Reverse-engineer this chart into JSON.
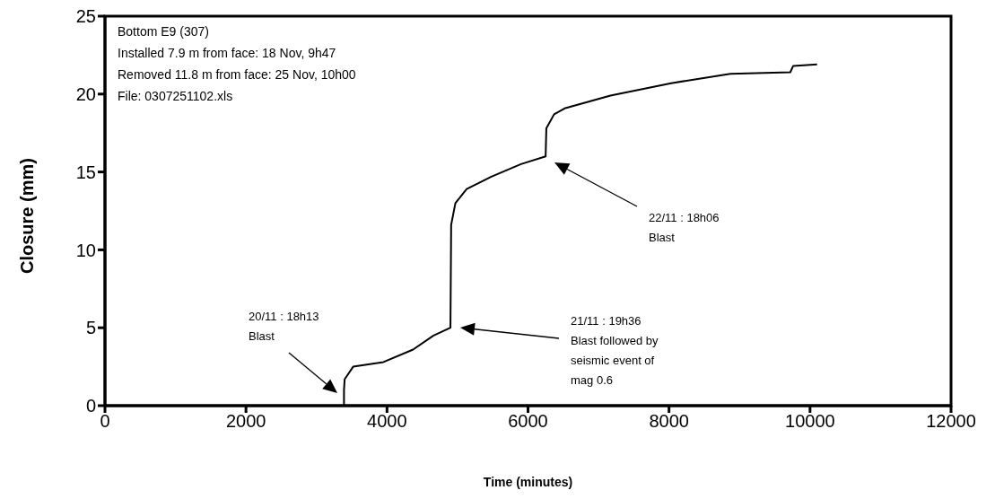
{
  "chart_data": {
    "type": "line",
    "xlabel": "Time (minutes)",
    "ylabel": "Closure (mm)",
    "xlim": [
      0,
      12000
    ],
    "xticks": [
      0,
      2000,
      4000,
      6000,
      8000,
      10000,
      12000
    ],
    "ylim": [
      0,
      25
    ],
    "yticks": [
      0,
      5,
      10,
      15,
      20,
      25
    ],
    "grid": false,
    "legend": false,
    "marker": "none",
    "line_style": "solid",
    "series": [
      {
        "color": "#000000",
        "x": [
          930,
          3390,
          3390,
          3400,
          3520,
          3950,
          4370,
          4660,
          4900,
          4910,
          4970,
          5130,
          5480,
          5900,
          6250,
          6260,
          6370,
          6530,
          7170,
          8030,
          8870,
          9720,
          9760,
          10100
        ],
        "values": [
          0,
          0,
          1.0,
          1.7,
          2.5,
          2.8,
          3.6,
          4.5,
          5.0,
          11.6,
          13.0,
          13.9,
          14.7,
          15.5,
          16.0,
          17.8,
          18.7,
          19.1,
          19.9,
          20.7,
          21.3,
          21.4,
          21.8,
          21.9
        ]
      }
    ],
    "annotations": [
      "Bottom E9 (307)",
      "Installed 7.9 m from face: 18 Nov, 9h47",
      "Removed 11.8 m from face: 25 Nov, 10h00",
      "File: 0307251102.xls",
      "20/11 : 18h13\nBlast",
      "21/11 : 19h36\nBlast followed by\nseismic event of\nmag 0.6",
      "22/11 : 18h06\nBlast"
    ]
  }
}
